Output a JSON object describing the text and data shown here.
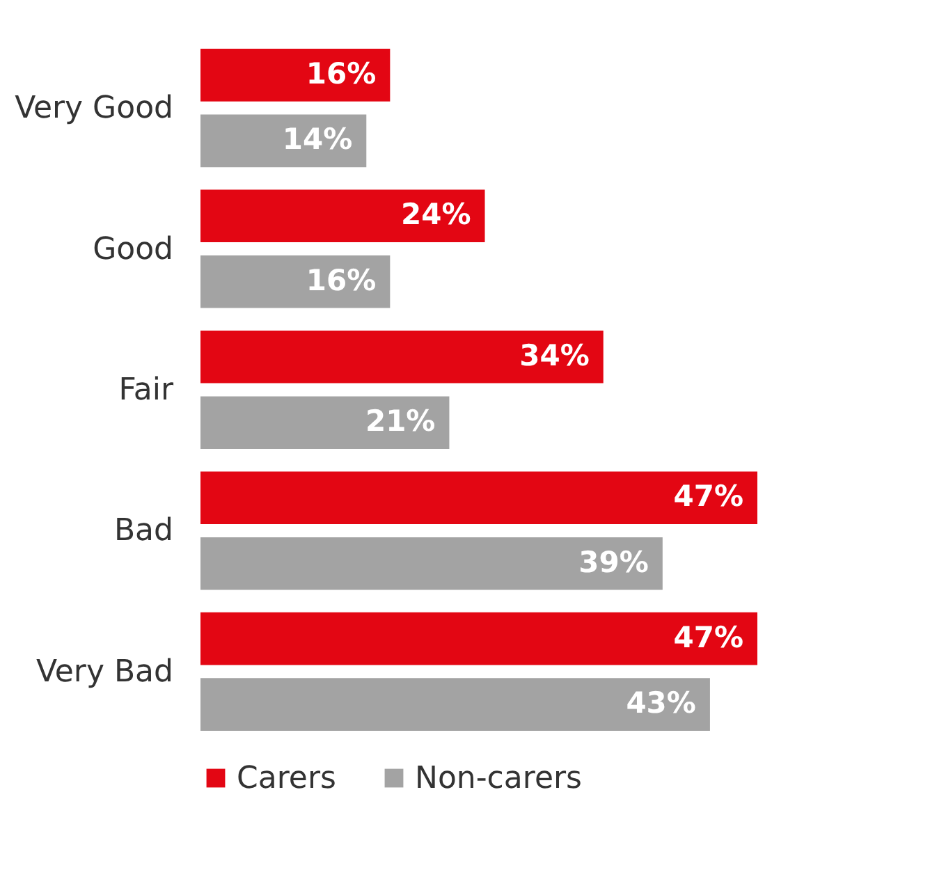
{
  "chart_data": {
    "type": "bar",
    "orientation": "horizontal",
    "categories": [
      "Very Good",
      "Good",
      "Fair",
      "Bad",
      "Very Bad"
    ],
    "series": [
      {
        "name": "Carers",
        "color": "#e30613",
        "values": [
          16,
          24,
          34,
          47,
          47
        ],
        "value_labels": [
          "16%",
          "24%",
          "34%",
          "47%",
          "47%"
        ]
      },
      {
        "name": "Non-carers",
        "color": "#a3a3a3",
        "values": [
          14,
          16,
          21,
          39,
          43
        ],
        "value_labels": [
          "14%",
          "16%",
          "21%",
          "39%",
          "43%"
        ]
      }
    ],
    "legend": "bottom",
    "grid": false
  }
}
